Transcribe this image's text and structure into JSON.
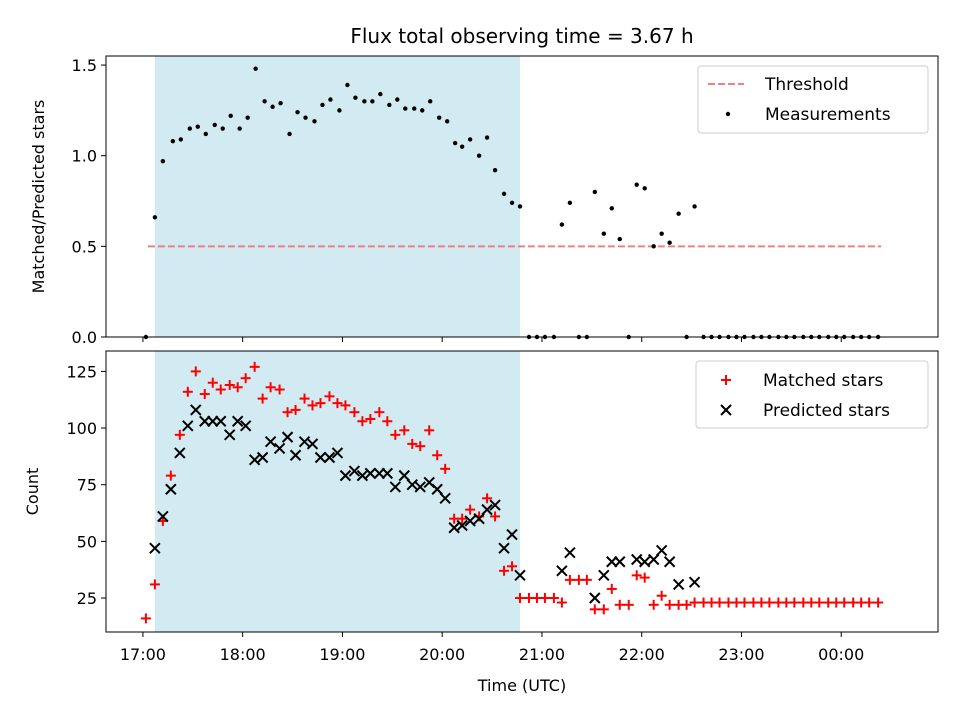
{
  "chart_data": [
    {
      "type": "scatter",
      "title": "Flux total observing time = 3.67 h",
      "xlabel": "",
      "ylabel": "Matched/Predicted stars",
      "ylim": [
        0,
        1.55
      ],
      "yticks": [
        "0.0",
        "0.5",
        "1.0",
        "1.5"
      ],
      "xlim_hours": [
        16.63,
        24.97
      ],
      "shaded_span_hours": [
        17.12,
        20.78
      ],
      "shade_color": "#add8e6",
      "legend_position": "upper-right",
      "series": [
        {
          "name": "Threshold",
          "kind": "dashed-line",
          "color": "#f08080",
          "x_hours": [
            17.05,
            24.4
          ],
          "y": [
            0.5,
            0.5
          ]
        },
        {
          "name": "Measurements",
          "kind": "dots",
          "color": "#000000",
          "points": [
            [
              17.03,
              0.0
            ],
            [
              17.12,
              0.66
            ],
            [
              17.2,
              0.97
            ],
            [
              17.3,
              1.08
            ],
            [
              17.38,
              1.09
            ],
            [
              17.47,
              1.15
            ],
            [
              17.55,
              1.16
            ],
            [
              17.63,
              1.12
            ],
            [
              17.72,
              1.17
            ],
            [
              17.8,
              1.15
            ],
            [
              17.88,
              1.22
            ],
            [
              17.97,
              1.15
            ],
            [
              18.05,
              1.21
            ],
            [
              18.13,
              1.48
            ],
            [
              18.22,
              1.3
            ],
            [
              18.3,
              1.27
            ],
            [
              18.38,
              1.29
            ],
            [
              18.47,
              1.12
            ],
            [
              18.55,
              1.24
            ],
            [
              18.63,
              1.21
            ],
            [
              18.72,
              1.19
            ],
            [
              18.8,
              1.28
            ],
            [
              18.88,
              1.31
            ],
            [
              18.97,
              1.25
            ],
            [
              19.05,
              1.39
            ],
            [
              19.13,
              1.32
            ],
            [
              19.22,
              1.3
            ],
            [
              19.3,
              1.3
            ],
            [
              19.38,
              1.34
            ],
            [
              19.47,
              1.28
            ],
            [
              19.55,
              1.31
            ],
            [
              19.63,
              1.26
            ],
            [
              19.72,
              1.26
            ],
            [
              19.8,
              1.25
            ],
            [
              19.88,
              1.3
            ],
            [
              19.97,
              1.21
            ],
            [
              20.05,
              1.19
            ],
            [
              20.13,
              1.07
            ],
            [
              20.2,
              1.05
            ],
            [
              20.28,
              1.09
            ],
            [
              20.37,
              1.0
            ],
            [
              20.45,
              1.1
            ],
            [
              20.53,
              0.92
            ],
            [
              20.62,
              0.79
            ],
            [
              20.7,
              0.74
            ],
            [
              20.78,
              0.72
            ],
            [
              20.87,
              0.0
            ],
            [
              20.95,
              0.0
            ],
            [
              21.03,
              0.0
            ],
            [
              21.12,
              0.0
            ],
            [
              21.2,
              0.62
            ],
            [
              21.28,
              0.74
            ],
            [
              21.37,
              0.0
            ],
            [
              21.45,
              0.0
            ],
            [
              21.53,
              0.8
            ],
            [
              21.62,
              0.57
            ],
            [
              21.7,
              0.71
            ],
            [
              21.78,
              0.54
            ],
            [
              21.87,
              0.0
            ],
            [
              21.95,
              0.84
            ],
            [
              22.03,
              0.82
            ],
            [
              22.12,
              0.5
            ],
            [
              22.2,
              0.57
            ],
            [
              22.28,
              0.52
            ],
            [
              22.37,
              0.68
            ],
            [
              22.45,
              0.0
            ],
            [
              22.53,
              0.72
            ],
            [
              22.62,
              0.0
            ],
            [
              22.7,
              0.0
            ],
            [
              22.78,
              0.0
            ],
            [
              22.87,
              0.0
            ],
            [
              22.95,
              0.0
            ],
            [
              23.03,
              0.0
            ],
            [
              23.12,
              0.0
            ],
            [
              23.2,
              0.0
            ],
            [
              23.28,
              0.0
            ],
            [
              23.37,
              0.0
            ],
            [
              23.45,
              0.0
            ],
            [
              23.53,
              0.0
            ],
            [
              23.62,
              0.0
            ],
            [
              23.7,
              0.0
            ],
            [
              23.78,
              0.0
            ],
            [
              23.87,
              0.0
            ],
            [
              23.95,
              0.0
            ],
            [
              24.03,
              0.0
            ],
            [
              24.12,
              0.0
            ],
            [
              24.2,
              0.0
            ],
            [
              24.28,
              0.0
            ],
            [
              24.37,
              0.0
            ]
          ]
        }
      ]
    },
    {
      "type": "scatter",
      "title": "",
      "xlabel": "Time (UTC)",
      "ylabel": "Count",
      "ylim": [
        10,
        134
      ],
      "yticks": [
        "25",
        "50",
        "75",
        "100",
        "125"
      ],
      "xlim_hours": [
        16.63,
        24.97
      ],
      "xticks": [
        "17:00",
        "18:00",
        "19:00",
        "20:00",
        "21:00",
        "22:00",
        "23:00",
        "00:00"
      ],
      "shaded_span_hours": [
        17.12,
        20.78
      ],
      "shade_color": "#add8e6",
      "legend_position": "upper-right",
      "series": [
        {
          "name": "Matched stars",
          "marker": "plus",
          "color": "#ff0000",
          "points": [
            [
              17.03,
              16
            ],
            [
              17.12,
              31
            ],
            [
              17.2,
              59
            ],
            [
              17.28,
              79
            ],
            [
              17.37,
              97
            ],
            [
              17.45,
              116
            ],
            [
              17.53,
              125
            ],
            [
              17.62,
              115
            ],
            [
              17.7,
              120
            ],
            [
              17.78,
              117
            ],
            [
              17.87,
              119
            ],
            [
              17.95,
              118
            ],
            [
              18.03,
              122
            ],
            [
              18.12,
              127
            ],
            [
              18.2,
              113
            ],
            [
              18.28,
              118
            ],
            [
              18.37,
              117
            ],
            [
              18.45,
              107
            ],
            [
              18.53,
              108
            ],
            [
              18.62,
              113
            ],
            [
              18.7,
              110
            ],
            [
              18.78,
              111
            ],
            [
              18.87,
              114
            ],
            [
              18.95,
              111
            ],
            [
              19.03,
              110
            ],
            [
              19.12,
              107
            ],
            [
              19.2,
              103
            ],
            [
              19.28,
              104
            ],
            [
              19.37,
              107
            ],
            [
              19.45,
              103
            ],
            [
              19.53,
              97
            ],
            [
              19.62,
              99
            ],
            [
              19.7,
              93
            ],
            [
              19.78,
              92
            ],
            [
              19.87,
              99
            ],
            [
              19.95,
              88
            ],
            [
              20.03,
              82
            ],
            [
              20.12,
              60
            ],
            [
              20.2,
              60
            ],
            [
              20.28,
              64
            ],
            [
              20.37,
              61
            ],
            [
              20.45,
              69
            ],
            [
              20.53,
              61
            ],
            [
              20.62,
              37
            ],
            [
              20.7,
              39
            ],
            [
              20.78,
              25
            ],
            [
              20.87,
              25
            ],
            [
              20.95,
              25
            ],
            [
              21.03,
              25
            ],
            [
              21.12,
              25
            ],
            [
              21.2,
              23
            ],
            [
              21.28,
              33
            ],
            [
              21.37,
              33
            ],
            [
              21.45,
              33
            ],
            [
              21.53,
              20
            ],
            [
              21.62,
              20
            ],
            [
              21.7,
              29
            ],
            [
              21.78,
              22
            ],
            [
              21.87,
              22
            ],
            [
              21.95,
              35
            ],
            [
              22.03,
              34
            ],
            [
              22.12,
              22
            ],
            [
              22.2,
              26
            ],
            [
              22.28,
              22
            ],
            [
              22.37,
              22
            ],
            [
              22.45,
              22
            ],
            [
              22.53,
              23
            ],
            [
              22.62,
              23
            ],
            [
              22.7,
              23
            ],
            [
              22.78,
              23
            ],
            [
              22.87,
              23
            ],
            [
              22.95,
              23
            ],
            [
              23.03,
              23
            ],
            [
              23.12,
              23
            ],
            [
              23.2,
              23
            ],
            [
              23.28,
              23
            ],
            [
              23.37,
              23
            ],
            [
              23.45,
              23
            ],
            [
              23.53,
              23
            ],
            [
              23.62,
              23
            ],
            [
              23.7,
              23
            ],
            [
              23.78,
              23
            ],
            [
              23.87,
              23
            ],
            [
              23.95,
              23
            ],
            [
              24.03,
              23
            ],
            [
              24.12,
              23
            ],
            [
              24.2,
              23
            ],
            [
              24.28,
              23
            ],
            [
              24.37,
              23
            ]
          ]
        },
        {
          "name": "Predicted stars",
          "marker": "x",
          "color": "#000000",
          "points": [
            [
              17.12,
              47
            ],
            [
              17.2,
              61
            ],
            [
              17.28,
              73
            ],
            [
              17.37,
              89
            ],
            [
              17.45,
              101
            ],
            [
              17.53,
              108
            ],
            [
              17.62,
              103
            ],
            [
              17.7,
              103
            ],
            [
              17.78,
              103
            ],
            [
              17.87,
              97
            ],
            [
              17.95,
              103
            ],
            [
              18.03,
              101
            ],
            [
              18.12,
              86
            ],
            [
              18.2,
              87
            ],
            [
              18.28,
              94
            ],
            [
              18.37,
              91
            ],
            [
              18.45,
              96
            ],
            [
              18.53,
              88
            ],
            [
              18.62,
              94
            ],
            [
              18.7,
              93
            ],
            [
              18.78,
              87
            ],
            [
              18.87,
              87
            ],
            [
              18.95,
              89
            ],
            [
              19.03,
              79
            ],
            [
              19.12,
              81
            ],
            [
              19.2,
              79
            ],
            [
              19.28,
              80
            ],
            [
              19.37,
              80
            ],
            [
              19.45,
              80
            ],
            [
              19.53,
              74
            ],
            [
              19.62,
              79
            ],
            [
              19.7,
              75
            ],
            [
              19.78,
              74
            ],
            [
              19.87,
              76
            ],
            [
              19.95,
              73
            ],
            [
              20.03,
              69
            ],
            [
              20.12,
              56
            ],
            [
              20.2,
              57
            ],
            [
              20.28,
              59
            ],
            [
              20.37,
              60
            ],
            [
              20.45,
              64
            ],
            [
              20.53,
              66
            ],
            [
              20.62,
              47
            ],
            [
              20.7,
              53
            ],
            [
              20.78,
              35
            ],
            [
              21.2,
              37
            ],
            [
              21.28,
              45
            ],
            [
              21.53,
              25
            ],
            [
              21.62,
              35
            ],
            [
              21.7,
              41
            ],
            [
              21.78,
              41
            ],
            [
              21.95,
              42
            ],
            [
              22.03,
              41
            ],
            [
              22.12,
              42
            ],
            [
              22.2,
              46
            ],
            [
              22.28,
              41
            ],
            [
              22.37,
              31
            ],
            [
              22.53,
              32
            ]
          ]
        }
      ]
    }
  ]
}
